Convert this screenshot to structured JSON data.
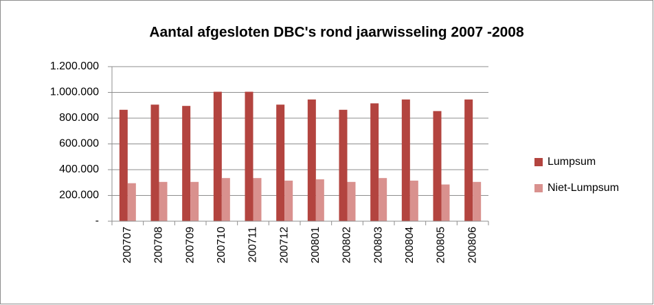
{
  "chart_data": {
    "type": "bar",
    "title": "Aantal afgesloten DBC's rond jaarwisseling 2007 -2008",
    "categories": [
      "200707",
      "200708",
      "200709",
      "200710",
      "200711",
      "200712",
      "200801",
      "200802",
      "200803",
      "200804",
      "200805",
      "200806"
    ],
    "series": [
      {
        "name": "Lumpsum",
        "color": "#b3443f",
        "values": [
          865000,
          905000,
          895000,
          1005000,
          1005000,
          905000,
          945000,
          865000,
          915000,
          945000,
          855000,
          945000
        ]
      },
      {
        "name": "Niet-Lumpsum",
        "color": "#d9918e",
        "values": [
          295000,
          305000,
          305000,
          335000,
          335000,
          315000,
          325000,
          305000,
          335000,
          315000,
          285000,
          305000
        ]
      }
    ],
    "ylim": [
      0,
      1200000
    ],
    "yticks": [
      {
        "value": 0,
        "label": "-"
      },
      {
        "value": 200000,
        "label": "200.000"
      },
      {
        "value": 400000,
        "label": "400.000"
      },
      {
        "value": 600000,
        "label": "600.000"
      },
      {
        "value": 800000,
        "label": "800.000"
      },
      {
        "value": 1000000,
        "label": "1.000.000"
      },
      {
        "value": 1200000,
        "label": "1.200.000"
      }
    ],
    "grid": true,
    "legend": "right"
  }
}
